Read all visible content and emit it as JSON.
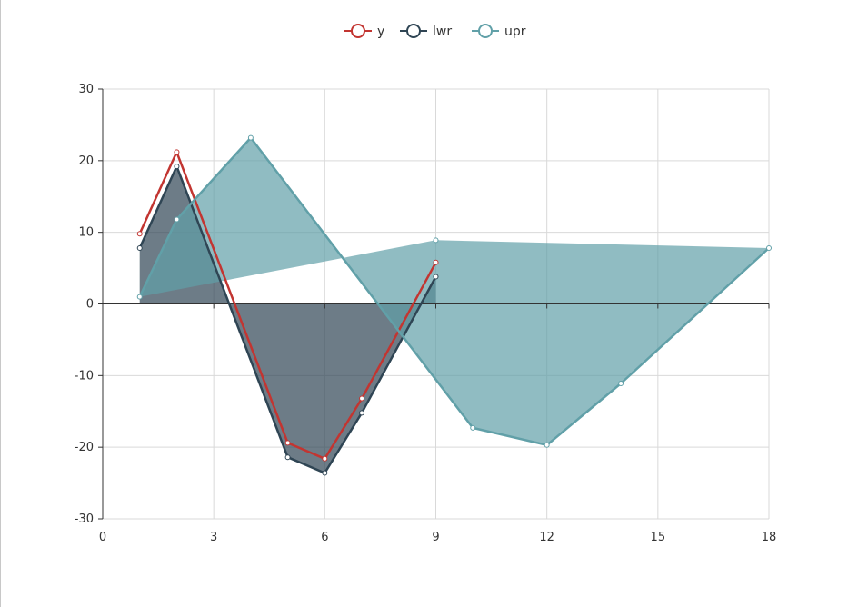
{
  "chart_data": {
    "type": "line",
    "title": "",
    "xlabel": "",
    "ylabel": "",
    "xlim": [
      0,
      18
    ],
    "ylim": [
      -30,
      30
    ],
    "x_ticks": [
      0,
      3,
      6,
      9,
      12,
      15,
      18
    ],
    "y_ticks": [
      -30,
      -20,
      -10,
      0,
      10,
      20,
      30
    ],
    "grid": true,
    "legend_position": "top-center",
    "series": [
      {
        "name": "y",
        "color": "#c23531",
        "area": false,
        "points": [
          [
            1,
            9.8
          ],
          [
            2,
            21.2
          ],
          [
            5,
            -19.4
          ],
          [
            6,
            -21.6
          ],
          [
            7,
            -13.2
          ],
          [
            9,
            5.8
          ]
        ]
      },
      {
        "name": "lwr",
        "color": "#2f4554",
        "area": true,
        "points": [
          [
            1,
            7.8
          ],
          [
            2,
            19.2
          ],
          [
            5,
            -21.4
          ],
          [
            6,
            -23.6
          ],
          [
            7,
            -15.2
          ],
          [
            9,
            3.8
          ]
        ]
      },
      {
        "name": "upr",
        "color": "#61a0a8",
        "area": true,
        "points": [
          [
            1,
            1
          ],
          [
            2,
            11.8
          ],
          [
            4,
            23.2
          ],
          [
            10,
            -17.3
          ],
          [
            12,
            -19.7
          ],
          [
            14,
            -11.1
          ],
          [
            18,
            7.8
          ],
          [
            9,
            8.9
          ],
          [
            1,
            1
          ]
        ]
      }
    ]
  }
}
